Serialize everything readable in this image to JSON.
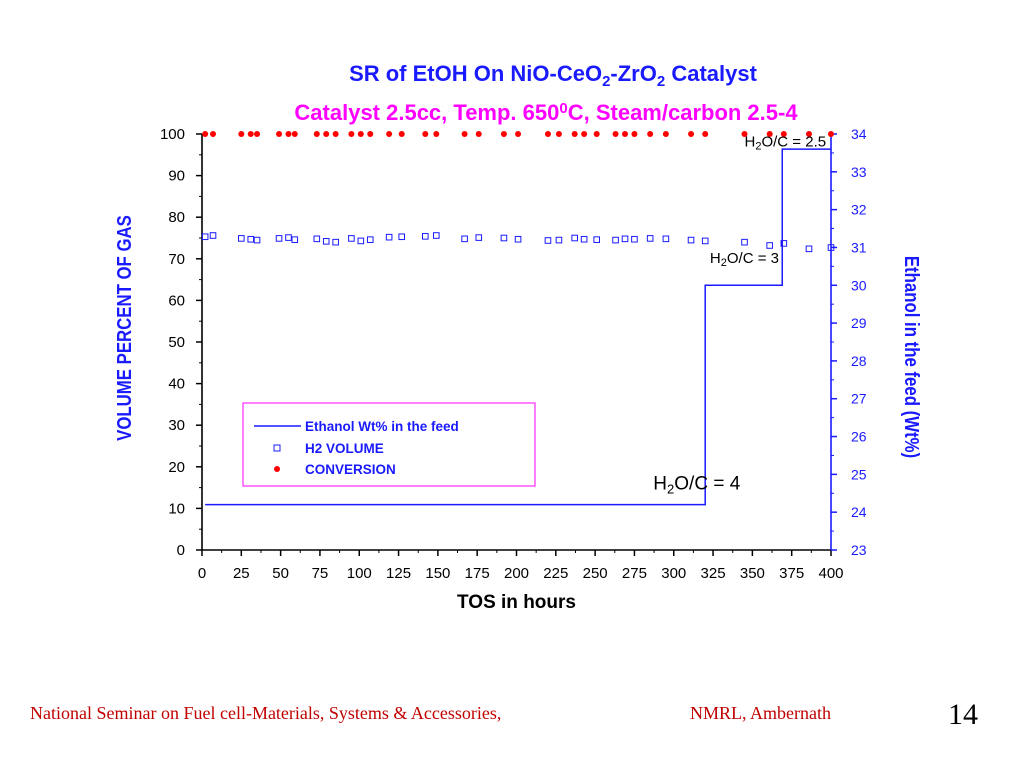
{
  "colors": {
    "title": "#1a1aff",
    "subtitle": "#ff00ff",
    "axis_left": "#000000",
    "axis_right": "#1a1aff",
    "ethanol_line": "#1a1aff",
    "h2_marker": "#1a1aff",
    "conversion_marker": "#ff0000",
    "legend_border": "#ff00ff",
    "footer": "#c00000"
  },
  "chart_data": {
    "type": "line",
    "title_parts": [
      "SR of EtOH On  NiO-CeO",
      "2",
      "-ZrO",
      "2",
      " Catalyst"
    ],
    "subtitle_parts": [
      "Catalyst 2.5cc, Temp. 650",
      "0",
      "C, Steam/carbon 2.5-4"
    ],
    "xlabel": "TOS in hours",
    "ylabel": "VOLUME PERCENT OF GAS",
    "y2label": "Ethanol in the feed (Wt%)",
    "xlim": [
      0,
      400
    ],
    "ylim": [
      0,
      100
    ],
    "y2lim": [
      23,
      34
    ],
    "x_ticks": [
      "0",
      "25",
      "50",
      "75",
      "100",
      "125",
      "150",
      "175",
      "200",
      "225",
      "250",
      "275",
      "300",
      "325",
      "350",
      "375",
      "400"
    ],
    "y_ticks": [
      "0",
      "10",
      "20",
      "30",
      "40",
      "50",
      "60",
      "70",
      "80",
      "90",
      "100"
    ],
    "y2_ticks": [
      "23",
      "24",
      "25",
      "26",
      "27",
      "28",
      "29",
      "30",
      "31",
      "32",
      "33",
      "34"
    ],
    "legend": {
      "position": "center-left",
      "entries": [
        "Ethanol Wt% in the feed",
        "H2 VOLUME",
        "CONVERSION"
      ]
    },
    "annotations": [
      {
        "parts": [
          "H",
          "2",
          "O/C = 2.5"
        ],
        "x": 345,
        "y": 97
      },
      {
        "parts": [
          "H",
          "2",
          "O/C = 3"
        ],
        "x": 323,
        "y": 69
      },
      {
        "parts": [
          "H",
          "2",
          "O/C = 4"
        ],
        "x": 287,
        "y": 14.5
      }
    ],
    "series": [
      {
        "name": "Ethanol Wt% in the feed",
        "axis": "right",
        "kind": "step",
        "x": [
          2,
          320,
          320,
          369,
          369,
          400
        ],
        "y": [
          24.2,
          24.2,
          30.0,
          30.0,
          33.6,
          33.6
        ]
      },
      {
        "name": "H2 VOLUME",
        "axis": "left",
        "kind": "scatter-square",
        "x": [
          2,
          7,
          25,
          31,
          35,
          49,
          55,
          59,
          73,
          79,
          85,
          95,
          101,
          107,
          119,
          127,
          142,
          149,
          167,
          176,
          192,
          201,
          220,
          227,
          237,
          243,
          251,
          263,
          269,
          275,
          285,
          295,
          311,
          320,
          345,
          361,
          370,
          386,
          400
        ],
        "y": [
          75.3,
          75.6,
          74.9,
          74.7,
          74.5,
          74.9,
          75.1,
          74.6,
          74.8,
          74.2,
          74.0,
          74.9,
          74.3,
          74.6,
          75.2,
          75.3,
          75.4,
          75.6,
          74.8,
          75.1,
          75.0,
          74.7,
          74.4,
          74.5,
          75.0,
          74.7,
          74.6,
          74.5,
          74.8,
          74.7,
          74.9,
          74.8,
          74.5,
          74.3,
          74.0,
          73.2,
          73.7,
          72.4,
          72.7
        ]
      },
      {
        "name": "CONVERSION",
        "axis": "left",
        "kind": "scatter-dot",
        "x": [
          2,
          7,
          25,
          31,
          35,
          49,
          55,
          59,
          73,
          79,
          85,
          95,
          101,
          107,
          119,
          127,
          142,
          149,
          167,
          176,
          192,
          201,
          220,
          227,
          237,
          243,
          251,
          263,
          269,
          275,
          285,
          295,
          311,
          320,
          345,
          361,
          370,
          386,
          400
        ],
        "y": [
          100,
          100,
          100,
          100,
          100,
          100,
          100,
          100,
          100,
          100,
          100,
          100,
          100,
          100,
          100,
          100,
          100,
          100,
          100,
          100,
          100,
          100,
          100,
          100,
          100,
          100,
          100,
          100,
          100,
          100,
          100,
          100,
          100,
          100,
          100,
          100,
          100,
          100,
          100
        ]
      }
    ]
  },
  "footer": {
    "left": "National Seminar on Fuel cell-Materials, Systems & Accessories,",
    "right": "NMRL, Ambernath",
    "page": "14"
  }
}
